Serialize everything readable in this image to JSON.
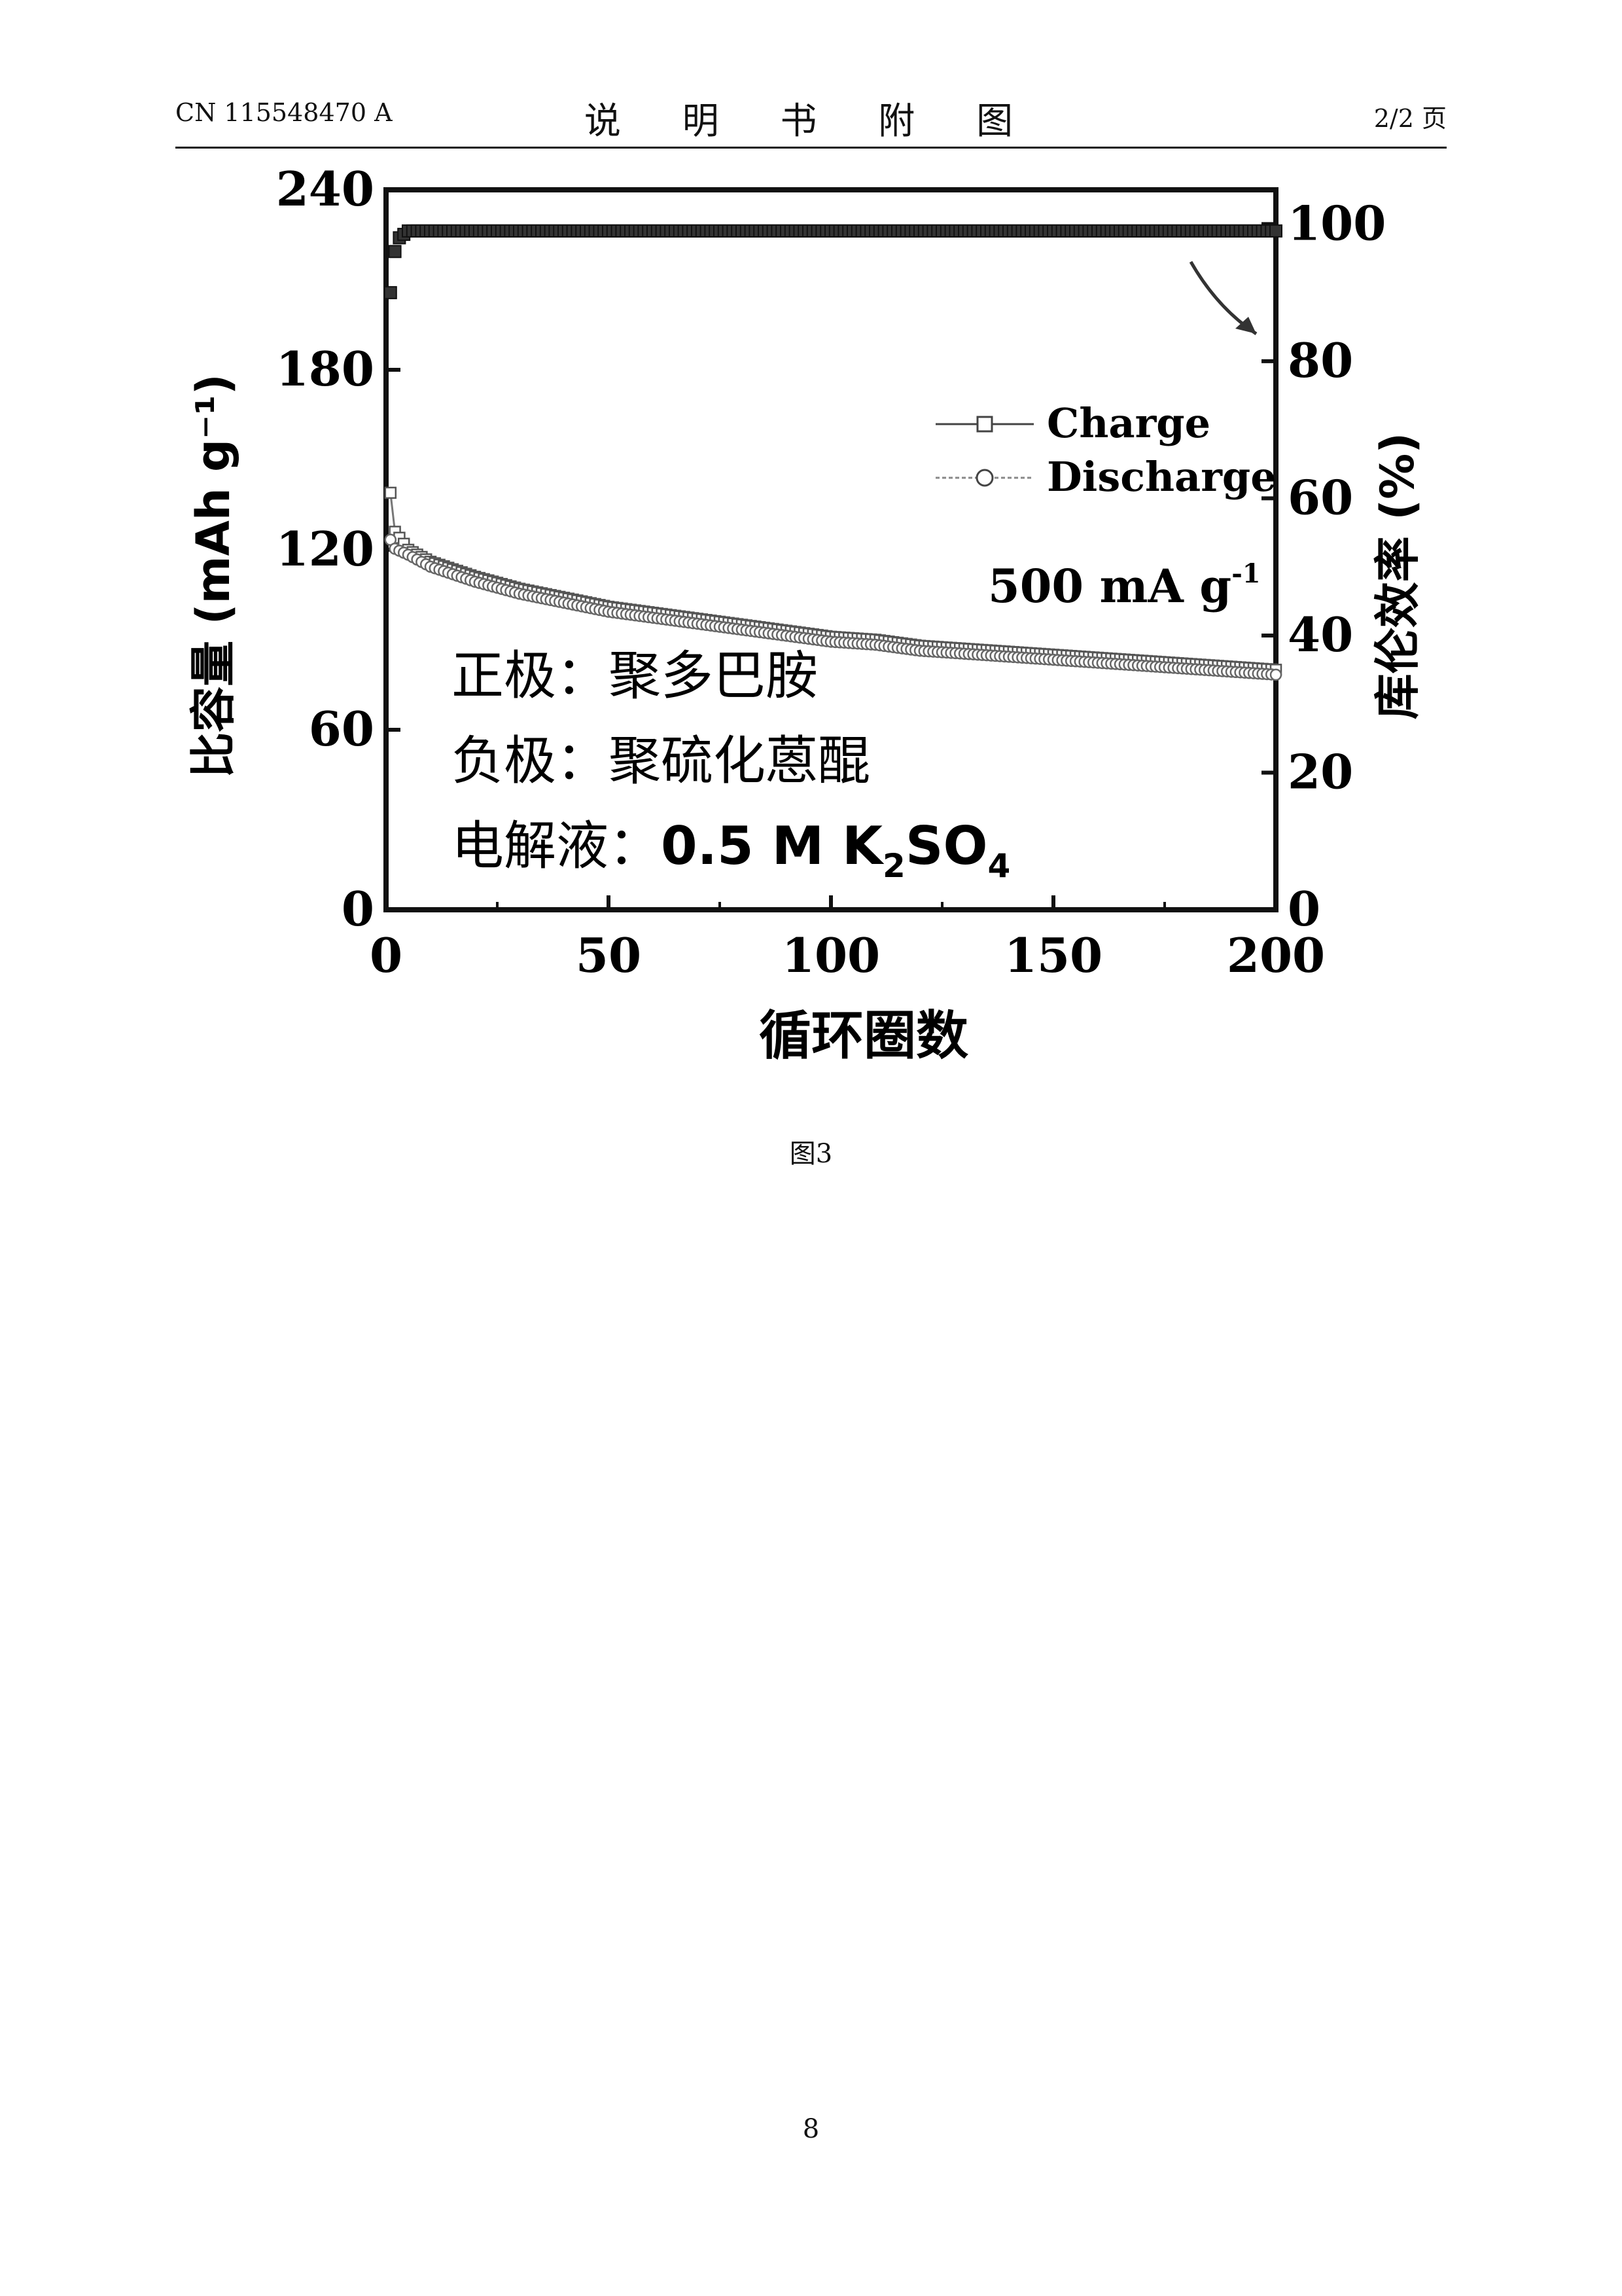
{
  "header": {
    "left": "CN 115548470 A",
    "center": "说 明 书 附 图",
    "right": "2/2 页"
  },
  "chart_data": {
    "type": "scatter",
    "xlabel": "循环圈数",
    "ylabel_left": "比容量 (mAh g⁻¹)",
    "ylabel_right": "库伦效率 (%)",
    "xlim": [
      0,
      200
    ],
    "ylim_left": [
      0,
      240
    ],
    "ylim_right": [
      0,
      105
    ],
    "xticks": [
      "0",
      "50",
      "100",
      "150",
      "200"
    ],
    "yticks_left": [
      "0",
      "60",
      "120",
      "180",
      "240"
    ],
    "yticks_right": [
      "0",
      "20",
      "40",
      "60",
      "80",
      "100"
    ],
    "legend": [
      "Charge",
      "Discharge"
    ],
    "legend_position": "top-right",
    "series": [
      {
        "name": "Charge",
        "axis": "left",
        "marker": "square",
        "x": [
          1,
          2,
          5,
          10,
          20,
          30,
          40,
          50,
          60,
          70,
          80,
          90,
          100,
          110,
          120,
          130,
          140,
          150,
          160,
          170,
          180,
          190,
          200
        ],
        "y": [
          139,
          126,
          120,
          116,
          111,
          107,
          104,
          101,
          99,
          97,
          95,
          93,
          91,
          90,
          88,
          87,
          86,
          85,
          84,
          83,
          82,
          81,
          80
        ]
      },
      {
        "name": "Discharge",
        "axis": "left",
        "marker": "circle",
        "x": [
          1,
          2,
          5,
          10,
          20,
          30,
          40,
          50,
          60,
          70,
          80,
          90,
          100,
          110,
          120,
          130,
          140,
          150,
          160,
          170,
          180,
          190,
          200
        ],
        "y": [
          124,
          121,
          119,
          115,
          110,
          106,
          103,
          100,
          98,
          96,
          94,
          92,
          90,
          89,
          87,
          86,
          85,
          84,
          83,
          82,
          81,
          80,
          79
        ]
      },
      {
        "name": "",
        "axis": "right",
        "marker": "filled-square",
        "x": [
          1,
          2,
          3,
          5,
          10,
          20,
          50,
          100,
          150,
          200
        ],
        "y": [
          90,
          96,
          98,
          99,
          99,
          99,
          99,
          99,
          99,
          99
        ]
      }
    ],
    "annotations": {
      "rate": "500 mA g",
      "rate_sup": "-1",
      "cathode": "正极：聚多巴胺",
      "anode": "负极：聚硫化蒽醌",
      "electrolyte_prefix": "电解液：",
      "electrolyte_formula": "0.5 M K",
      "electrolyte_sub2": "2",
      "electrolyte_so": "SO",
      "electrolyte_sub4": "4"
    }
  },
  "caption": "图3",
  "page_number": "8"
}
